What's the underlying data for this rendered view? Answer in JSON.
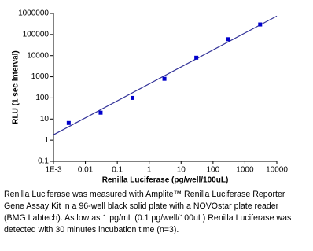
{
  "chart_data": {
    "type": "scatter",
    "x_label": "Renilla Luciferase (pg/well/100uL)",
    "y_label": "RLU (1 sec interval)",
    "log_x": true,
    "log_y": true,
    "x": [
      0.003,
      0.03,
      0.3,
      3,
      30,
      300,
      3000
    ],
    "series": [
      {
        "color": "#0000cc",
        "values": [
          6.5,
          20,
          100,
          800,
          8000,
          60000,
          300000
        ]
      }
    ],
    "fit_line": {
      "color": "#333399",
      "x": [
        0.001,
        10000
      ],
      "values": [
        1.8,
        750000
      ]
    },
    "xlim": [
      0.001,
      10000
    ],
    "xticks": [
      {
        "value": 0.001,
        "label": "1E-3"
      },
      0.01,
      0.1,
      1,
      10,
      100,
      1000,
      10000
    ],
    "ylim": [
      0.1,
      1000000
    ],
    "yticks": [
      0.1,
      1,
      10,
      100,
      1000,
      10000,
      100000,
      1000000
    ]
  },
  "caption": [
    "Renilla Luciferase was measured with Amplite™ Renilla Luciferase Reporter",
    "Gene Assay Kit in a 96-well black solid plate with a NOVOstar plate reader",
    "(BMG Labtech). As low as 1 pg/mL (0.1 pg/well/100uL) Renilla Luciferase was",
    "detected with 30 minutes incubation time (n=3)."
  ]
}
